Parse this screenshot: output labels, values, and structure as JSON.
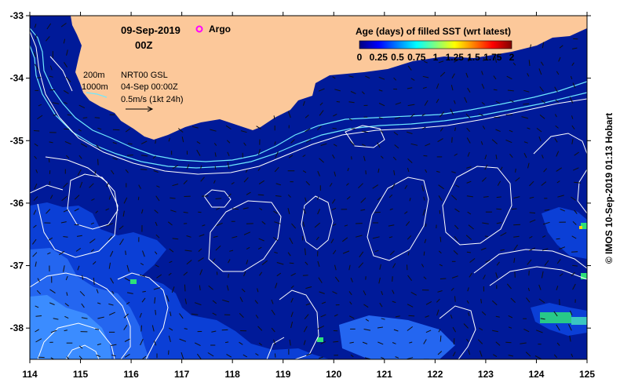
{
  "date_label": "09-Sep-2019",
  "time_label": "00Z",
  "argo_label": "Argo",
  "isobath_200_label": "200m",
  "isobath_1000_label": "1000m",
  "altimetry_label": "NRT00 GSL",
  "altimetry_date": "04-Sep 00:00Z",
  "scale_vector_label": "0.5m/s (1kt 24h)",
  "legend": {
    "title": "Age (days) of filled SST (wrt latest)",
    "ticks": [
      "0",
      "0.25",
      "0.5",
      "0.75",
      "1",
      "1.25",
      "1.5",
      "1.75",
      "2"
    ],
    "colors": [
      "#00007f",
      "#0000ff",
      "#0080ff",
      "#00ffff",
      "#7fff7f",
      "#ffff00",
      "#ff8000",
      "#ff0000",
      "#7f0000"
    ]
  },
  "axes": {
    "x_ticks": [
      "114",
      "115",
      "116",
      "117",
      "118",
      "119",
      "120",
      "121",
      "122",
      "123",
      "124",
      "125"
    ],
    "y_ticks": [
      "-33",
      "-34",
      "-35",
      "-36",
      "-37",
      "-38"
    ],
    "lon_range": [
      114,
      125
    ],
    "lat_range": [
      -38.5,
      -33
    ]
  },
  "copyright": "© IMOS 10-Sep-2019 01:13 Hobart",
  "colors": {
    "ocean": "#001a99",
    "land": "#fcc89a",
    "gap": "#0b3fd6",
    "gap2": "#2466f0",
    "gap3": "#3b8cff",
    "contour": "#ffffff",
    "isobath": "#6ee8ff",
    "argo": "#ff00ff",
    "vector": "#111111"
  }
}
